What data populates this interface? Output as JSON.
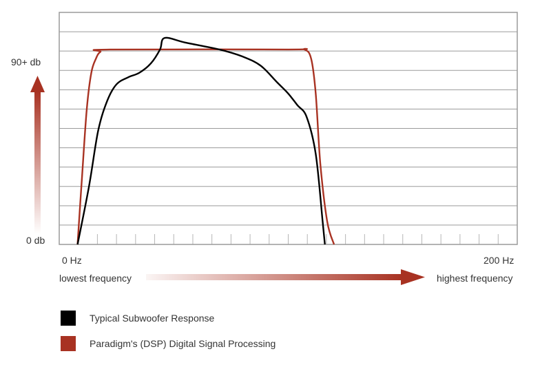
{
  "chart_data": {
    "type": "line",
    "title": "",
    "x_label_left": "0 Hz",
    "x_label_right": "200 Hz",
    "x_caption_left": "lowest frequency",
    "x_caption_right": "highest frequency",
    "y_label_top": "90+ db",
    "y_label_bottom": "0 db",
    "xlim": [
      0,
      200
    ],
    "ylim": [
      0,
      100
    ],
    "grid": true,
    "series": [
      {
        "name": "Typical Subwoofer Response",
        "color": "#000000",
        "points": [
          [
            8,
            0
          ],
          [
            13,
            25
          ],
          [
            17,
            49
          ],
          [
            21,
            62
          ],
          [
            25,
            69
          ],
          [
            30,
            72
          ],
          [
            35,
            74
          ],
          [
            40,
            78
          ],
          [
            44,
            84
          ],
          [
            46,
            89
          ],
          [
            55,
            87
          ],
          [
            70,
            84
          ],
          [
            80,
            81
          ],
          [
            88,
            77
          ],
          [
            95,
            70
          ],
          [
            100,
            65
          ],
          [
            104,
            60
          ],
          [
            108,
            55
          ],
          [
            112,
            39
          ],
          [
            115,
            10
          ],
          [
            116,
            0
          ]
        ]
      },
      {
        "name": "Paradigm's (DSP) Digital Signal Processing",
        "color": "#a83222",
        "points": [
          [
            8,
            0
          ],
          [
            10,
            30
          ],
          [
            12,
            58
          ],
          [
            14,
            74
          ],
          [
            16,
            80
          ],
          [
            18,
            83
          ],
          [
            22,
            84
          ],
          [
            100,
            84
          ],
          [
            107,
            84
          ],
          [
            110,
            80
          ],
          [
            112,
            65
          ],
          [
            114,
            35
          ],
          [
            117,
            10
          ],
          [
            120,
            0
          ]
        ]
      }
    ]
  },
  "legend": {
    "items": [
      {
        "label": "Typical Subwoofer Response",
        "color": "#000000"
      },
      {
        "label": "Paradigm's (DSP) Digital Signal Processing",
        "color": "#a83222"
      }
    ]
  },
  "colors": {
    "grid": "#9a9a9a",
    "accent": "#a83222"
  }
}
